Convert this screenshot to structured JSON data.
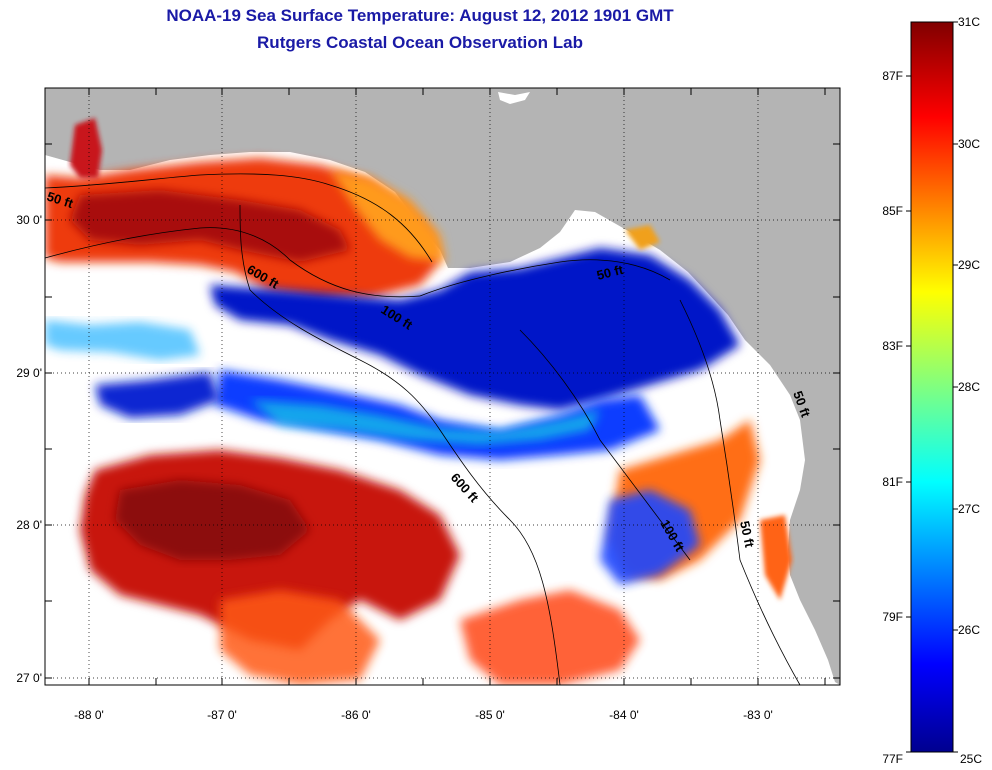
{
  "title": {
    "line1": "NOAA-19 Sea Surface Temperature:  August 12, 2012 1901 GMT",
    "line2": "Rutgers Coastal Ocean Observation Lab"
  },
  "map": {
    "region": "Northeastern Gulf of Mexico / Florida Big Bend",
    "x_ticks": [
      "-88 0'",
      "-87 0'",
      "-86 0'",
      "-85 0'",
      "-84 0'",
      "-83 0'"
    ],
    "y_ticks": [
      "30 0'",
      "29 0'",
      "28 0'",
      "27 0'"
    ],
    "depth_labels": [
      {
        "text": "50 ft"
      },
      {
        "text": "600 ft"
      },
      {
        "text": "100 ft"
      },
      {
        "text": "50 ft"
      },
      {
        "text": "600 ft"
      },
      {
        "text": "100 ft"
      },
      {
        "text": "50 ft"
      },
      {
        "text": "50 ft"
      }
    ],
    "colors": {
      "land": "#b4b4b4",
      "no_data": "#ffffff",
      "title": "#1a1aa6"
    }
  },
  "colorbar": {
    "celsius_labels": [
      "31C",
      "30C",
      "29C",
      "28C",
      "27C",
      "26C",
      "25C"
    ],
    "fahrenheit_labels": [
      "87F",
      "85F",
      "83F",
      "81F",
      "79F",
      "77F"
    ],
    "min_c": 25,
    "max_c": 31
  }
}
